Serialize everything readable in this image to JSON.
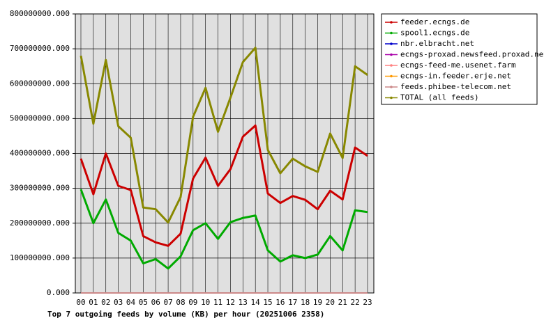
{
  "chart_data": {
    "type": "line",
    "title": "Top 7 outgoing feeds by volume (KB) per hour (20251006 2358)",
    "categories": [
      "00",
      "01",
      "02",
      "03",
      "04",
      "05",
      "06",
      "07",
      "08",
      "09",
      "10",
      "11",
      "12",
      "13",
      "14",
      "15",
      "16",
      "17",
      "18",
      "19",
      "20",
      "21",
      "22",
      "23"
    ],
    "ylim": [
      0,
      800000000
    ],
    "yticks": [
      {
        "value": 0,
        "label": "0.000"
      },
      {
        "value": 100000000,
        "label": "100000000.000"
      },
      {
        "value": 200000000,
        "label": "200000000.000"
      },
      {
        "value": 300000000,
        "label": "300000000.000"
      },
      {
        "value": 400000000,
        "label": "400000000.000"
      },
      {
        "value": 500000000,
        "label": "500000000.000"
      },
      {
        "value": 600000000,
        "label": "600000000.000"
      },
      {
        "value": 700000000,
        "label": "700000000.000"
      },
      {
        "value": 800000000,
        "label": "800000000.000"
      }
    ],
    "grid": true,
    "legend": "right",
    "series": [
      {
        "name": "feeder.ecngs.de",
        "color": "#cc0000",
        "values": [
          385000000,
          283000000,
          400000000,
          307000000,
          295000000,
          163000000,
          145000000,
          135000000,
          170000000,
          328000000,
          388000000,
          307000000,
          355000000,
          448000000,
          480000000,
          285000000,
          258000000,
          278000000,
          267000000,
          240000000,
          293000000,
          268000000,
          417000000,
          393000000
        ]
      },
      {
        "name": "spool1.ecngs.de",
        "color": "#00aa00",
        "values": [
          297000000,
          200000000,
          268000000,
          172000000,
          150000000,
          85000000,
          97000000,
          70000000,
          105000000,
          180000000,
          200000000,
          155000000,
          203000000,
          215000000,
          222000000,
          122000000,
          90000000,
          108000000,
          100000000,
          110000000,
          163000000,
          122000000,
          237000000,
          232000000
        ]
      },
      {
        "name": "nbr.elbracht.net",
        "color": "#0000cc",
        "values": [
          0,
          0,
          0,
          0,
          0,
          0,
          0,
          0,
          0,
          0,
          0,
          0,
          0,
          0,
          0,
          0,
          0,
          0,
          0,
          0,
          0,
          0,
          0,
          0
        ]
      },
      {
        "name": "ecngs-proxad.newsfeed.proxad.net",
        "color": "#aa00aa",
        "values": [
          0,
          0,
          0,
          0,
          0,
          0,
          0,
          0,
          0,
          0,
          0,
          0,
          0,
          0,
          0,
          0,
          0,
          0,
          0,
          0,
          0,
          0,
          0,
          0
        ]
      },
      {
        "name": "ecngs-feed-me.usenet.farm",
        "color": "#ff8080",
        "values": [
          0,
          0,
          0,
          0,
          0,
          0,
          0,
          0,
          0,
          0,
          0,
          0,
          0,
          0,
          0,
          0,
          0,
          0,
          0,
          0,
          0,
          0,
          0,
          0
        ]
      },
      {
        "name": "ecngs-in.feeder.erje.net",
        "color": "#ff9900",
        "values": [
          0,
          0,
          0,
          0,
          0,
          0,
          0,
          0,
          0,
          0,
          0,
          0,
          0,
          0,
          0,
          0,
          0,
          0,
          0,
          0,
          0,
          0,
          0,
          0
        ]
      },
      {
        "name": "feeds.phibee-telecom.net",
        "color": "#cc8888",
        "values": [
          0,
          0,
          0,
          0,
          0,
          0,
          0,
          0,
          0,
          0,
          0,
          0,
          0,
          0,
          0,
          0,
          0,
          0,
          0,
          0,
          0,
          0,
          0,
          0
        ]
      },
      {
        "name": "TOTAL (all feeds)",
        "color": "#888800",
        "values": [
          680000000,
          485000000,
          668000000,
          478000000,
          445000000,
          245000000,
          240000000,
          202000000,
          275000000,
          505000000,
          588000000,
          462000000,
          560000000,
          662000000,
          703000000,
          410000000,
          343000000,
          385000000,
          363000000,
          347000000,
          457000000,
          387000000,
          650000000,
          625000000
        ]
      }
    ]
  }
}
